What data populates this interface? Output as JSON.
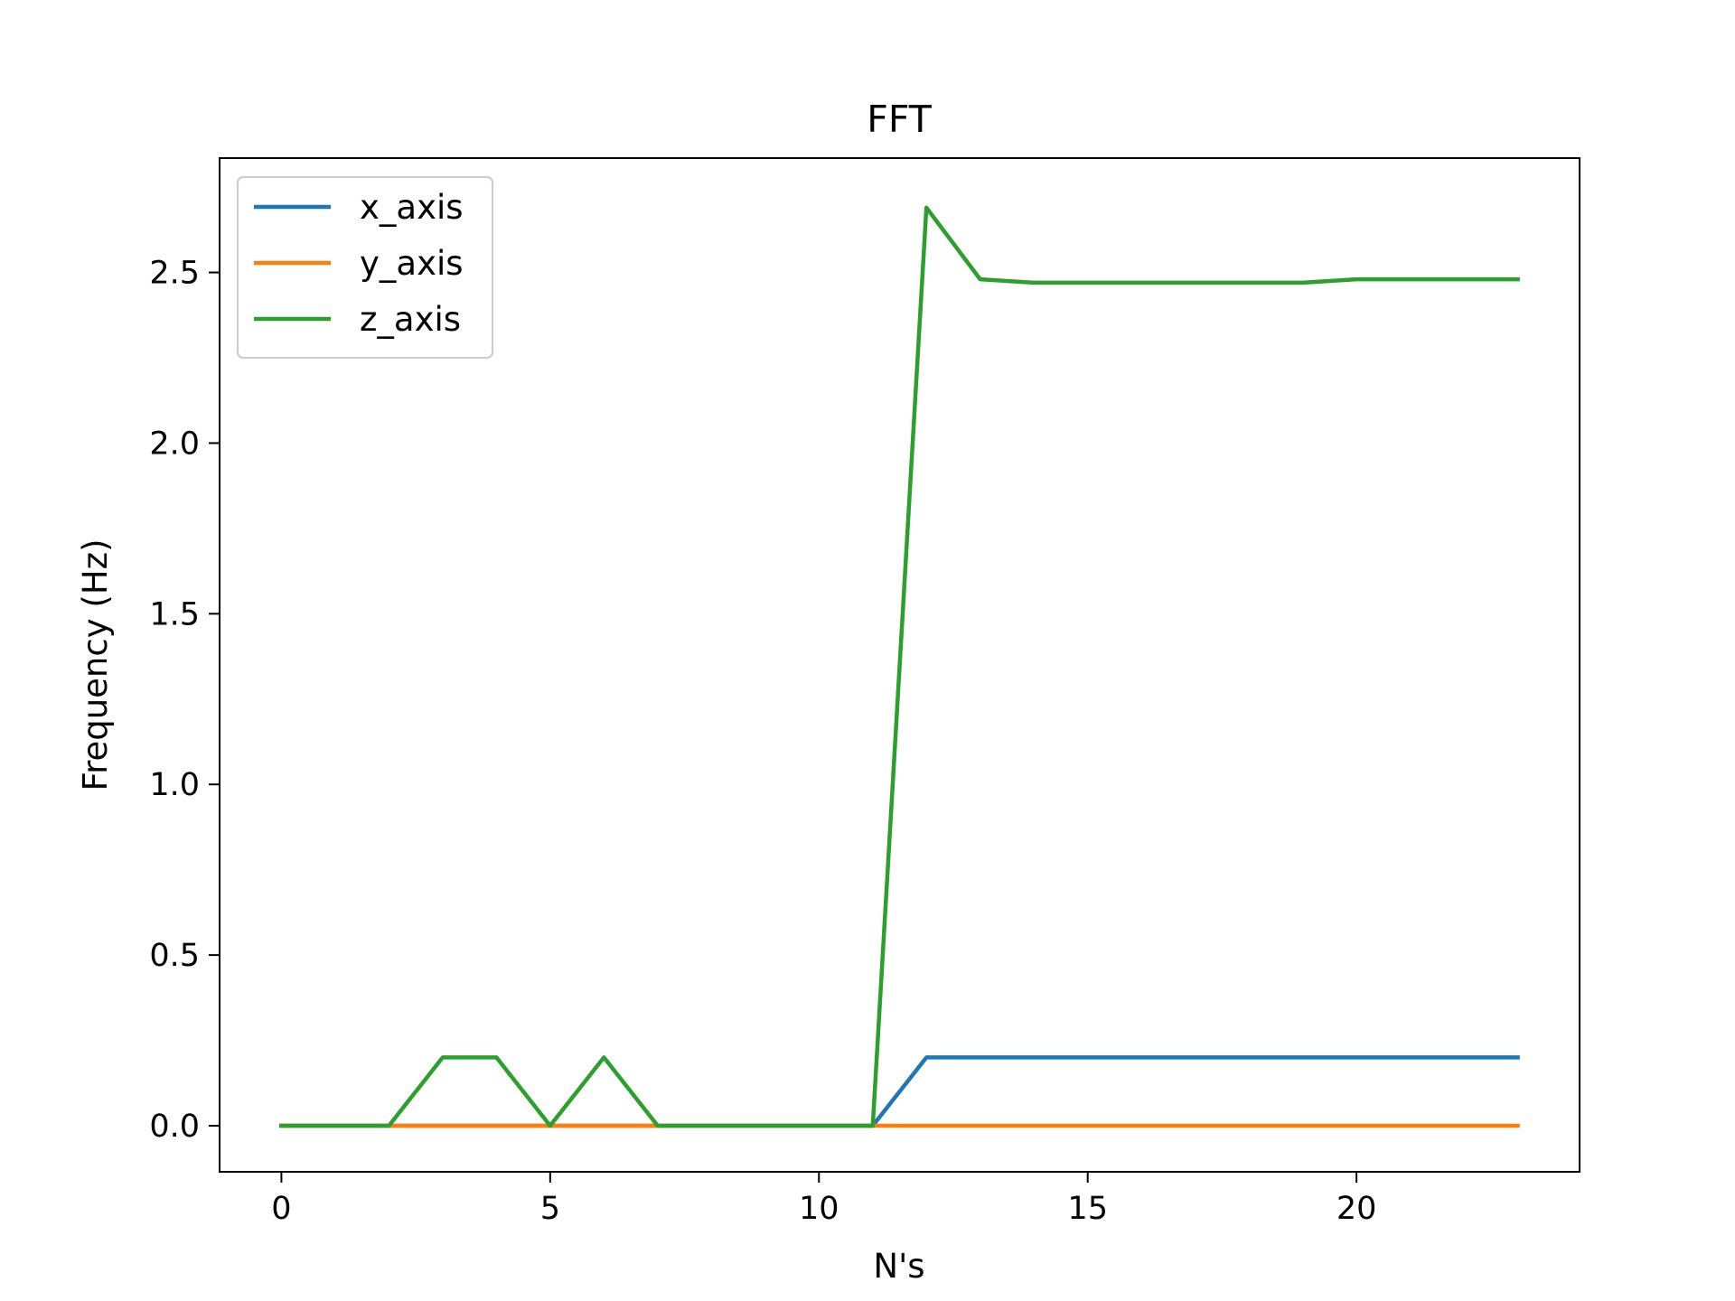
{
  "chart_data": {
    "type": "line",
    "title": "FFT",
    "xlabel": "N's",
    "ylabel": "Frequency (Hz)",
    "xlim": [
      -1.15,
      24.15
    ],
    "ylim": [
      -0.135,
      2.835
    ],
    "xticks": [
      0,
      5,
      10,
      15,
      20
    ],
    "xtick_labels": [
      "0",
      "5",
      "10",
      "15",
      "20"
    ],
    "yticks": [
      0.0,
      0.5,
      1.0,
      1.5,
      2.0,
      2.5
    ],
    "ytick_labels": [
      "0.0",
      "0.5",
      "1.0",
      "1.5",
      "2.0",
      "2.5"
    ],
    "grid": false,
    "legend_position": "upper left",
    "x": [
      0,
      1,
      2,
      3,
      4,
      5,
      6,
      7,
      8,
      9,
      10,
      11,
      12,
      13,
      14,
      15,
      16,
      17,
      18,
      19,
      20,
      21,
      22,
      23
    ],
    "series": [
      {
        "name": "x_axis",
        "color": "#1f77b4",
        "values": [
          0,
          0,
          0,
          0,
          0,
          0,
          0,
          0,
          0,
          0,
          0,
          0,
          0.2,
          0.2,
          0.2,
          0.2,
          0.2,
          0.2,
          0.2,
          0.2,
          0.2,
          0.2,
          0.2,
          0.2
        ]
      },
      {
        "name": "y_axis",
        "color": "#ff7f0e",
        "values": [
          0,
          0,
          0,
          0,
          0,
          0,
          0,
          0,
          0,
          0,
          0,
          0,
          0,
          0,
          0,
          0,
          0,
          0,
          0,
          0,
          0,
          0,
          0,
          0
        ]
      },
      {
        "name": "z_axis",
        "color": "#2ca02c",
        "values": [
          0,
          0,
          0,
          0.2,
          0.2,
          0,
          0.2,
          0,
          0,
          0,
          0,
          0,
          2.69,
          2.48,
          2.47,
          2.47,
          2.47,
          2.47,
          2.47,
          2.47,
          2.48,
          2.48,
          2.48,
          2.48
        ]
      }
    ]
  }
}
